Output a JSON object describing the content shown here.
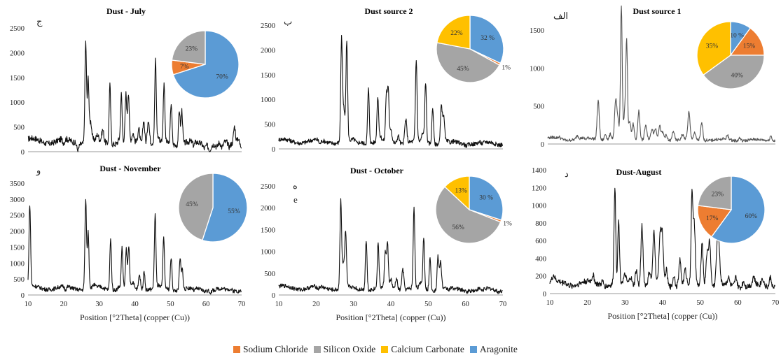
{
  "colors": {
    "sodium_chloride": "#ed7d31",
    "silicon_oxide": "#a5a5a5",
    "calcium_carbonate": "#ffc000",
    "aragonite": "#5b9bd5"
  },
  "legend": [
    {
      "label": "Sodium Chloride",
      "color_key": "sodium_chloride"
    },
    {
      "label": "Silicon Oxide",
      "color_key": "silicon_oxide"
    },
    {
      "label": "Calcium Carbonate",
      "color_key": "calcium_carbonate"
    },
    {
      "label": "Aragonite",
      "color_key": "aragonite"
    }
  ],
  "chart_data": [
    {
      "type": "line",
      "title": "Dust - July",
      "panel_letter": "ج",
      "xlim": [
        10,
        70
      ],
      "ylim": [
        0,
        2500
      ],
      "yticks": [
        0,
        500,
        1000,
        1500,
        2000,
        2500
      ],
      "xticks": [],
      "xlabel": "",
      "baseline": 220,
      "peaks": [
        [
          20,
          140
        ],
        [
          24,
          90
        ],
        [
          26.2,
          2260
        ],
        [
          26.9,
          1500
        ],
        [
          27.6,
          600
        ],
        [
          29.5,
          320
        ],
        [
          31,
          450
        ],
        [
          33,
          1420
        ],
        [
          35.5,
          280
        ],
        [
          36.2,
          1180
        ],
        [
          37.5,
          1160
        ],
        [
          38.2,
          1180
        ],
        [
          39.5,
          380
        ],
        [
          41.1,
          520
        ],
        [
          42.5,
          700
        ],
        [
          43.8,
          720
        ],
        [
          45.8,
          1860
        ],
        [
          46.5,
          300
        ],
        [
          48.2,
          1420
        ],
        [
          50.2,
          1050
        ],
        [
          52.5,
          920
        ],
        [
          53.2,
          900
        ],
        [
          56.5,
          140
        ],
        [
          59.5,
          150
        ],
        [
          61,
          120
        ],
        [
          63,
          150
        ],
        [
          64.5,
          110
        ],
        [
          66.5,
          140
        ],
        [
          68,
          590
        ],
        [
          69,
          380
        ]
      ],
      "pie": [
        {
          "label": "Aragonite",
          "color_key": "aragonite",
          "value": 70,
          "text": "70%"
        },
        {
          "label": "Sodium Chloride",
          "color_key": "sodium_chloride",
          "value": 7,
          "text": "7%"
        },
        {
          "label": "Silicon Oxide",
          "color_key": "silicon_oxide",
          "value": 23,
          "text": "23%"
        }
      ]
    },
    {
      "type": "line",
      "title": "Dust source 2",
      "panel_letter": "ب",
      "xlim": [
        10,
        70
      ],
      "ylim": [
        0,
        2500
      ],
      "yticks": [
        0,
        500,
        1000,
        1500,
        2000,
        2500
      ],
      "xticks": [],
      "xlabel": "",
      "baseline": 160,
      "peaks": [
        [
          21,
          80
        ],
        [
          26.8,
          2230
        ],
        [
          27.4,
          800
        ],
        [
          28.2,
          2160
        ],
        [
          30,
          180
        ],
        [
          31,
          120
        ],
        [
          34,
          1270
        ],
        [
          36.5,
          1080
        ],
        [
          37.2,
          250
        ],
        [
          38.8,
          1080
        ],
        [
          39.3,
          1160
        ],
        [
          40,
          420
        ],
        [
          42,
          320
        ],
        [
          44,
          640
        ],
        [
          46.8,
          1800
        ],
        [
          48.5,
          320
        ],
        [
          49.3,
          1380
        ],
        [
          51.2,
          900
        ],
        [
          53.5,
          880
        ],
        [
          54.1,
          700
        ],
        [
          56,
          140
        ],
        [
          60.2,
          130
        ],
        [
          62.5,
          150
        ],
        [
          64.5,
          120
        ],
        [
          66.8,
          170
        ],
        [
          68.8,
          150
        ]
      ],
      "pie": [
        {
          "label": "Aragonite",
          "color_key": "aragonite",
          "value": 32,
          "text": "32 %"
        },
        {
          "label": "Sodium Chloride",
          "color_key": "sodium_chloride",
          "value": 1,
          "text": "1%"
        },
        {
          "label": "Silicon Oxide",
          "color_key": "silicon_oxide",
          "value": 45,
          "text": "45%"
        },
        {
          "label": "Calcium Carbonate",
          "color_key": "calcium_carbonate",
          "value": 22,
          "text": "22%"
        }
      ]
    },
    {
      "type": "line",
      "title": "Dust source 1",
      "panel_letter": "الف",
      "xlim": [
        10,
        70
      ],
      "ylim": [
        0,
        1750
      ],
      "yticks": [
        0,
        500,
        1000,
        1500
      ],
      "xticks": [],
      "xlabel": "",
      "baseline": 70,
      "peaks": [
        [
          13,
          90
        ],
        [
          15,
          60
        ],
        [
          17.8,
          120
        ],
        [
          20,
          50
        ],
        [
          23.3,
          580
        ],
        [
          25.2,
          150
        ],
        [
          26.5,
          140
        ],
        [
          27.9,
          560
        ],
        [
          28.5,
          300
        ],
        [
          29.4,
          1820
        ],
        [
          30.3,
          400
        ],
        [
          30.8,
          1320
        ],
        [
          31.6,
          300
        ],
        [
          32.5,
          280
        ],
        [
          34,
          460
        ],
        [
          35.8,
          260
        ],
        [
          37.5,
          200
        ],
        [
          38.4,
          200
        ],
        [
          39.5,
          240
        ],
        [
          40.3,
          160
        ],
        [
          41.2,
          130
        ],
        [
          43.1,
          200
        ],
        [
          45.5,
          130
        ],
        [
          47.2,
          420
        ],
        [
          48.7,
          150
        ],
        [
          50.6,
          300
        ],
        [
          52,
          80
        ],
        [
          55.5,
          60
        ],
        [
          57.4,
          120
        ],
        [
          60.6,
          110
        ],
        [
          64.6,
          70
        ],
        [
          65.6,
          60
        ],
        [
          68.8,
          140
        ]
      ],
      "pie": [
        {
          "label": "Aragonite",
          "color_key": "aragonite",
          "value": 10,
          "text": "10 %"
        },
        {
          "label": "Sodium Chloride",
          "color_key": "sodium_chloride",
          "value": 15,
          "text": "15%"
        },
        {
          "label": "Silicon Oxide",
          "color_key": "silicon_oxide",
          "value": 40,
          "text": "40%"
        },
        {
          "label": "Calcium Carbonate",
          "color_key": "calcium_carbonate",
          "value": 35,
          "text": "35%"
        }
      ]
    },
    {
      "type": "line",
      "title": "Dust  - November",
      "panel_letter": "و",
      "xlim": [
        10,
        70
      ],
      "ylim": [
        0,
        3500
      ],
      "yticks": [
        0,
        500,
        1000,
        1500,
        2000,
        2500,
        3000,
        3500
      ],
      "xticks": [
        10,
        20,
        30,
        40,
        50,
        60,
        70
      ],
      "xlabel": "Position [°2Theta] (copper (Cu))",
      "baseline": 230,
      "peaks": [
        [
          10.5,
          2800
        ],
        [
          20.5,
          130
        ],
        [
          26.2,
          3000
        ],
        [
          26.9,
          2000
        ],
        [
          28.5,
          300
        ],
        [
          30.6,
          250
        ],
        [
          33.2,
          1850
        ],
        [
          35.5,
          300
        ],
        [
          36.4,
          1520
        ],
        [
          37.6,
          1420
        ],
        [
          38.3,
          1500
        ],
        [
          39.5,
          400
        ],
        [
          41.3,
          700
        ],
        [
          42.6,
          850
        ],
        [
          45.7,
          2560
        ],
        [
          46.6,
          300
        ],
        [
          48.1,
          1800
        ],
        [
          50.2,
          1250
        ],
        [
          52.7,
          1200
        ],
        [
          53.3,
          900
        ],
        [
          56.7,
          150
        ],
        [
          59.5,
          200
        ],
        [
          61.3,
          180
        ],
        [
          63.4,
          250
        ],
        [
          65.7,
          180
        ],
        [
          67.7,
          200
        ],
        [
          69.2,
          220
        ]
      ],
      "pie": [
        {
          "label": "Aragonite",
          "color_key": "aragonite",
          "value": 55,
          "text": "55%"
        },
        {
          "label": "Silicon Oxide",
          "color_key": "silicon_oxide",
          "value": 45,
          "text": "45%"
        }
      ]
    },
    {
      "type": "line",
      "title": "Dust - October",
      "panel_letter": "ه",
      "panel_letter_2": "e",
      "xlim": [
        10,
        70
      ],
      "ylim": [
        0,
        2500
      ],
      "yticks": [
        0,
        500,
        1000,
        1500,
        2000,
        2500
      ],
      "xticks": [
        10,
        20,
        30,
        40,
        50,
        60,
        70
      ],
      "xlabel": "Position [°2Theta] (copper (Cu))",
      "baseline": 170,
      "peaks": [
        [
          20.5,
          110
        ],
        [
          26.6,
          2200
        ],
        [
          27.3,
          700
        ],
        [
          27.9,
          1400
        ],
        [
          30,
          150
        ],
        [
          31.2,
          130
        ],
        [
          33.4,
          1320
        ],
        [
          36.6,
          1200
        ],
        [
          38.5,
          1000
        ],
        [
          39.1,
          1200
        ],
        [
          40,
          380
        ],
        [
          41.5,
          420
        ],
        [
          43.2,
          640
        ],
        [
          46.2,
          1990
        ],
        [
          48,
          300
        ],
        [
          48.8,
          1340
        ],
        [
          50.5,
          900
        ],
        [
          52.6,
          920
        ],
        [
          53.3,
          800
        ],
        [
          55.6,
          130
        ],
        [
          60.2,
          140
        ],
        [
          62.6,
          150
        ],
        [
          64.5,
          120
        ],
        [
          66.7,
          180
        ],
        [
          68.7,
          140
        ]
      ],
      "pie": [
        {
          "label": "Aragonite",
          "color_key": "aragonite",
          "value": 30,
          "text": "30 %"
        },
        {
          "label": "Sodium Chloride",
          "color_key": "sodium_chloride",
          "value": 1,
          "text": "1%"
        },
        {
          "label": "Silicon Oxide",
          "color_key": "silicon_oxide",
          "value": 56,
          "text": "56%"
        },
        {
          "label": "Calcium Carbonate",
          "color_key": "calcium_carbonate",
          "value": 13,
          "text": "13%"
        }
      ]
    },
    {
      "type": "line",
      "title": "Dust-August",
      "panel_letter": "د",
      "xlim": [
        10,
        70
      ],
      "ylim": [
        0,
        1400
      ],
      "yticks": [
        0,
        200,
        400,
        600,
        800,
        1000,
        1200,
        1400
      ],
      "xticks": [
        10,
        20,
        30,
        40,
        50,
        60,
        70
      ],
      "xlabel": "Position [°2Theta] (copper (Cu))",
      "baseline": 120,
      "peaks": [
        [
          11,
          180
        ],
        [
          14,
          150
        ],
        [
          17,
          120
        ],
        [
          21.5,
          200
        ],
        [
          24,
          170
        ],
        [
          27.3,
          1220
        ],
        [
          28.3,
          820
        ],
        [
          30,
          200
        ],
        [
          31.5,
          200
        ],
        [
          33,
          300
        ],
        [
          34.5,
          800
        ],
        [
          36.5,
          250
        ],
        [
          37.7,
          700
        ],
        [
          39.3,
          640
        ],
        [
          39.9,
          680
        ],
        [
          41,
          300
        ],
        [
          43,
          250
        ],
        [
          44.6,
          400
        ],
        [
          46,
          280
        ],
        [
          47.8,
          1130
        ],
        [
          48.4,
          800
        ],
        [
          50.5,
          600
        ],
        [
          51.8,
          500
        ],
        [
          52.5,
          640
        ],
        [
          54.5,
          520
        ],
        [
          55,
          500
        ],
        [
          57.5,
          200
        ],
        [
          59.5,
          230
        ],
        [
          61.5,
          190
        ],
        [
          64.2,
          210
        ],
        [
          66.6,
          200
        ],
        [
          68.7,
          240
        ]
      ],
      "pie": [
        {
          "label": "Aragonite",
          "color_key": "aragonite",
          "value": 60,
          "text": "60%"
        },
        {
          "label": "Sodium Chloride",
          "color_key": "sodium_chloride",
          "value": 17,
          "text": "17%"
        },
        {
          "label": "Silicon Oxide",
          "color_key": "silicon_oxide",
          "value": 23,
          "text": "23%"
        }
      ]
    }
  ]
}
